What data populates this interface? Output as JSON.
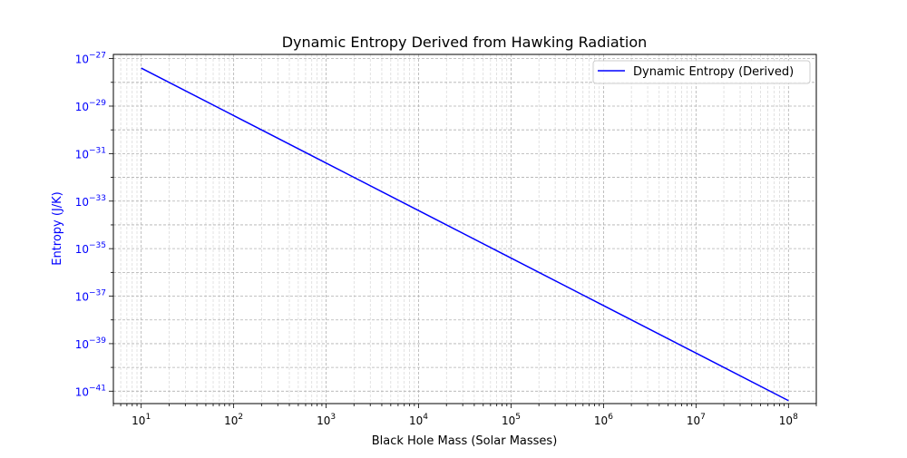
{
  "chart_data": {
    "type": "line",
    "title": "Dynamic Entropy Derived from Hawking Radiation",
    "xlabel": "Black Hole Mass (Solar Masses)",
    "ylabel": "Entropy (J/K)",
    "x_scale": "log",
    "y_scale": "log",
    "xlim": [
      5,
      200000000
    ],
    "ylim": [
      3e-42,
      1.5e-27
    ],
    "x_ticks": [
      {
        "base": "10",
        "exp": "1"
      },
      {
        "base": "10",
        "exp": "2"
      },
      {
        "base": "10",
        "exp": "3"
      },
      {
        "base": "10",
        "exp": "4"
      },
      {
        "base": "10",
        "exp": "5"
      },
      {
        "base": "10",
        "exp": "6"
      },
      {
        "base": "10",
        "exp": "7"
      },
      {
        "base": "10",
        "exp": "8"
      }
    ],
    "y_ticks": [
      {
        "base": "10",
        "exp": "−27"
      },
      {
        "base": "10",
        "exp": "−29"
      },
      {
        "base": "10",
        "exp": "−31"
      },
      {
        "base": "10",
        "exp": "−33"
      },
      {
        "base": "10",
        "exp": "−35"
      },
      {
        "base": "10",
        "exp": "−37"
      },
      {
        "base": "10",
        "exp": "−39"
      },
      {
        "base": "10",
        "exp": "−41"
      }
    ],
    "grid": true,
    "legend_position": "upper right",
    "series": [
      {
        "name": "Dynamic Entropy (Derived)",
        "color": "#0000ff",
        "x": [
          10,
          100,
          1000,
          10000,
          100000,
          1000000,
          10000000,
          100000000
        ],
        "y": [
          4e-28,
          4e-30,
          4e-32,
          4e-34,
          4e-36,
          4e-38,
          4e-40,
          4e-42
        ]
      }
    ],
    "ylabel_color": "#0000ff",
    "ytick_color": "#0000ff"
  }
}
